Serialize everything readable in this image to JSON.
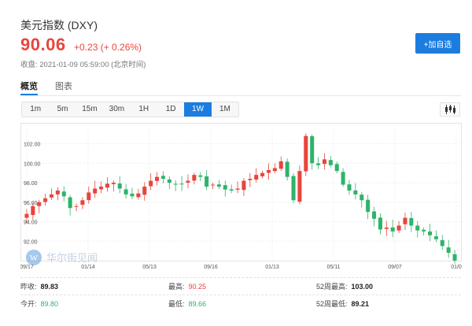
{
  "header": {
    "title": "美元指数 (DXY)",
    "price": "90.06",
    "change": "+0.23 (+ 0.26%)",
    "closed": "收盘: 2021-01-09 05:59:00 (北京时间)",
    "add_button": "+加自选"
  },
  "tabs": [
    "概览",
    "图表"
  ],
  "periods": [
    "1m",
    "5m",
    "15m",
    "30m",
    "1H",
    "1D",
    "1W",
    "1M"
  ],
  "active_period": "1W",
  "watermark": "华尔街见闻",
  "chart_data": {
    "type": "candlestick",
    "y_ticks": [
      "102.00",
      "100.00",
      "98.00",
      "96.00",
      "94.00",
      "92.00"
    ],
    "x_ticks": [
      "09/17",
      "01/14",
      "05/13",
      "09/16",
      "01/13",
      "05/11",
      "09/07",
      "01/0"
    ],
    "ylim": [
      90.0,
      103.5
    ],
    "grid": true,
    "colors": {
      "up": "#e8453c",
      "down": "#2fb36a"
    },
    "close_path": [
      94.8,
      95.6,
      96.0,
      96.4,
      96.8,
      97.2,
      96.6,
      95.4,
      95.6,
      96.2,
      97.0,
      97.4,
      97.6,
      97.9,
      98.0,
      97.4,
      96.8,
      96.6,
      96.9,
      97.6,
      98.2,
      98.6,
      98.4,
      98.0,
      97.8,
      97.9,
      98.2,
      98.8,
      98.6,
      97.6,
      97.8,
      97.6,
      97.3,
      97.2,
      97.4,
      98.2,
      98.4,
      98.8,
      99.0,
      99.3,
      99.5,
      100.2,
      98.6,
      96.2,
      99.2,
      102.8,
      100.0,
      99.8,
      100.4,
      99.8,
      99.2,
      97.8,
      97.2,
      96.8,
      96.2,
      95.0,
      94.3,
      93.2,
      93.4,
      93.0,
      93.6,
      94.4,
      93.6,
      93.1,
      93.0,
      92.6,
      92.2,
      91.5,
      90.8,
      90.0
    ]
  },
  "stats": [
    [
      {
        "label": "昨收:",
        "value": "89.83",
        "tone": "dark"
      },
      {
        "label": "最高:",
        "value": "90.25",
        "tone": "red"
      },
      {
        "label": "52周最高:",
        "value": "103.00",
        "tone": "dark"
      }
    ],
    [
      {
        "label": "今开:",
        "value": "89.80",
        "tone": "green"
      },
      {
        "label": "最低:",
        "value": "89.66",
        "tone": "green"
      },
      {
        "label": "52周最低:",
        "value": "89.21",
        "tone": "dark"
      }
    ]
  ]
}
